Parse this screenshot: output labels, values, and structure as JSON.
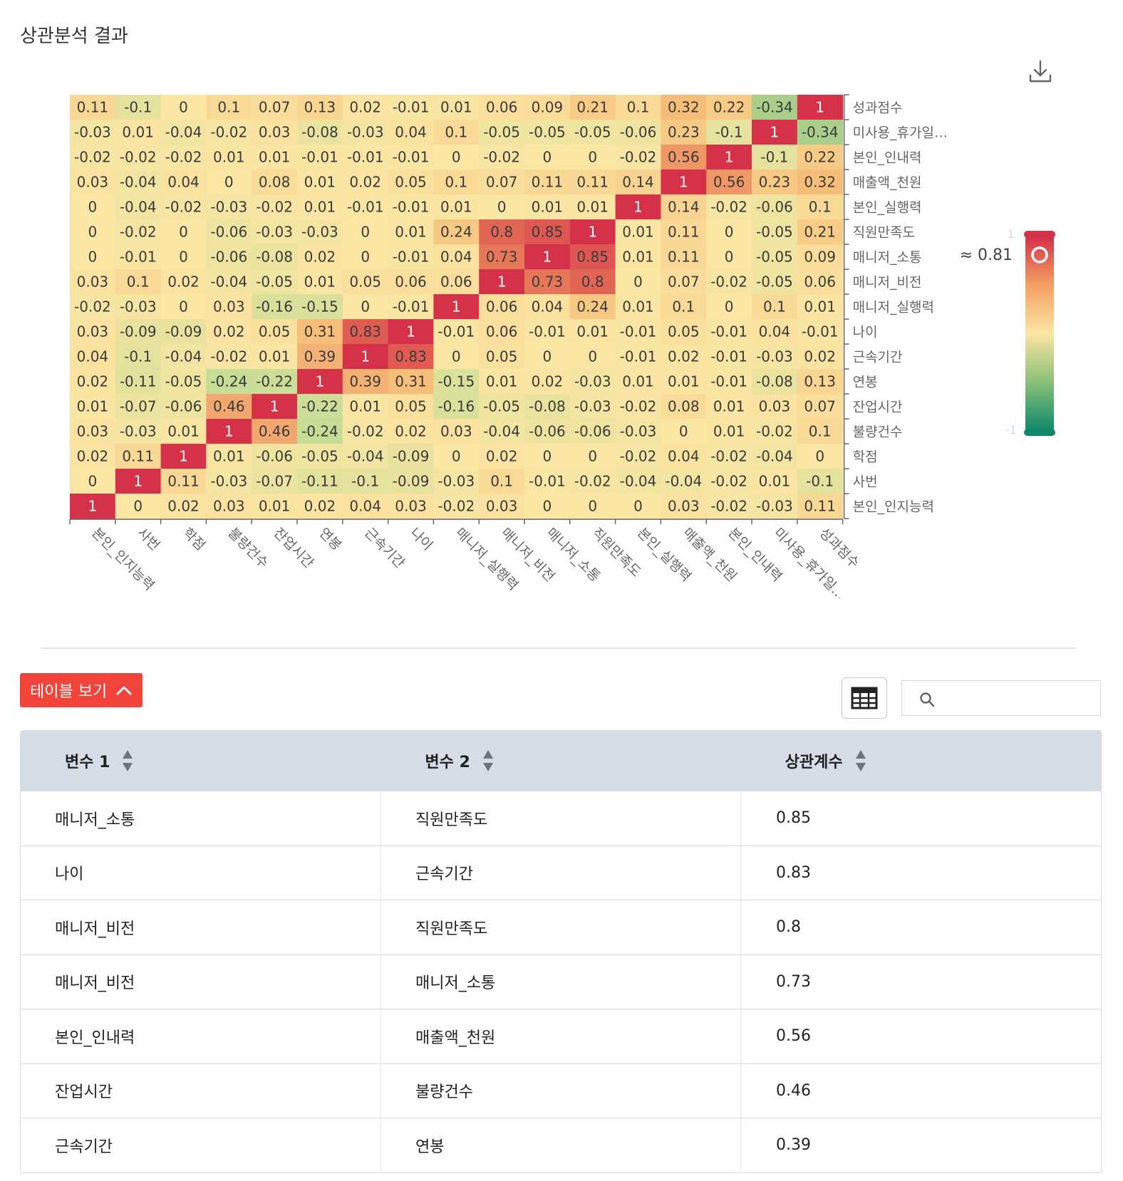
{
  "page": {
    "title": "상관분석 결과"
  },
  "toolbar": {
    "download_icon": "download-icon"
  },
  "chart_data": {
    "type": "heatmap",
    "x_categories": [
      "본인_인지능력",
      "사번",
      "학점",
      "불량건수",
      "잔업시간",
      "연봉",
      "근속기간",
      "나이",
      "매니저_실행력",
      "매니저_비전",
      "매니저_소통",
      "직원만족도",
      "본인_실행력",
      "매출액_천원",
      "본인_인내력",
      "미사용_휴가일수",
      "성과점수"
    ],
    "x_tick_labels": [
      "본인_인지능력",
      "사번",
      "학점",
      "불량건수",
      "잔업시간",
      "연봉",
      "근속기간",
      "나이",
      "매니저_실행력",
      "매니저_비전",
      "매니저_소통",
      "직원만족도",
      "본인_실행력",
      "매출액_천원",
      "본인_인내력",
      "미사용_휴가일…",
      "성과점수"
    ],
    "y_categories_top_to_bottom": [
      "성과점수",
      "미사용_휴가일수",
      "본인_인내력",
      "매출액_천원",
      "본인_실행력",
      "직원만족도",
      "매니저_소통",
      "매니저_비전",
      "매니저_실행력",
      "나이",
      "근속기간",
      "연봉",
      "잔업시간",
      "불량건수",
      "학점",
      "사번",
      "본인_인지능력"
    ],
    "y_tick_labels_top_to_bottom": [
      "성과점수",
      "미사용_휴가일…",
      "본인_인내력",
      "매출액_천원",
      "본인_실행력",
      "직원만족도",
      "매니저_소통",
      "매니저_비전",
      "매니저_실행력",
      "나이",
      "근속기간",
      "연봉",
      "잔업시간",
      "불량건수",
      "학점",
      "사번",
      "본인_인지능력"
    ],
    "values_top_to_bottom": [
      [
        "0.11",
        "-0.1",
        "0",
        "0.1",
        "0.07",
        "0.13",
        "0.02",
        "-0.01",
        "0.01",
        "0.06",
        "0.09",
        "0.21",
        "0.1",
        "0.32",
        "0.22",
        "-0.34",
        "1"
      ],
      [
        "-0.03",
        "0.01",
        "-0.04",
        "-0.02",
        "0.03",
        "-0.08",
        "-0.03",
        "0.04",
        "0.1",
        "-0.05",
        "-0.05",
        "-0.05",
        "-0.06",
        "0.23",
        "-0.1",
        "1",
        "-0.34"
      ],
      [
        "-0.02",
        "-0.02",
        "-0.02",
        "0.01",
        "0.01",
        "-0.01",
        "-0.01",
        "-0.01",
        "0",
        "-0.02",
        "0",
        "0",
        "-0.02",
        "0.56",
        "1",
        "-0.1",
        "0.22"
      ],
      [
        "0.03",
        "-0.04",
        "0.04",
        "0",
        "0.08",
        "0.01",
        "0.02",
        "0.05",
        "0.1",
        "0.07",
        "0.11",
        "0.11",
        "0.14",
        "1",
        "0.56",
        "0.23",
        "0.32"
      ],
      [
        "0",
        "-0.04",
        "-0.02",
        "-0.03",
        "-0.02",
        "0.01",
        "-0.01",
        "-0.01",
        "0.01",
        "0",
        "0.01",
        "0.01",
        "1",
        "0.14",
        "-0.02",
        "-0.06",
        "0.1"
      ],
      [
        "0",
        "-0.02",
        "0",
        "-0.06",
        "-0.03",
        "-0.03",
        "0",
        "0.01",
        "0.24",
        "0.8",
        "0.85",
        "1",
        "0.01",
        "0.11",
        "0",
        "-0.05",
        "0.21"
      ],
      [
        "0",
        "-0.01",
        "0",
        "-0.06",
        "-0.08",
        "0.02",
        "0",
        "-0.01",
        "0.04",
        "0.73",
        "1",
        "0.85",
        "0.01",
        "0.11",
        "0",
        "-0.05",
        "0.09"
      ],
      [
        "0.03",
        "0.1",
        "0.02",
        "-0.04",
        "-0.05",
        "0.01",
        "0.05",
        "0.06",
        "0.06",
        "1",
        "0.73",
        "0.8",
        "0",
        "0.07",
        "-0.02",
        "-0.05",
        "0.06"
      ],
      [
        "-0.02",
        "-0.03",
        "0",
        "0.03",
        "-0.16",
        "-0.15",
        "0",
        "-0.01",
        "1",
        "0.06",
        "0.04",
        "0.24",
        "0.01",
        "0.1",
        "0",
        "0.1",
        "0.01"
      ],
      [
        "0.03",
        "-0.09",
        "-0.09",
        "0.02",
        "0.05",
        "0.31",
        "0.83",
        "1",
        "-0.01",
        "0.06",
        "-0.01",
        "0.01",
        "-0.01",
        "0.05",
        "-0.01",
        "0.04",
        "-0.01"
      ],
      [
        "0.04",
        "-0.1",
        "-0.04",
        "-0.02",
        "0.01",
        "0.39",
        "1",
        "0.83",
        "0",
        "0.05",
        "0",
        "0",
        "-0.01",
        "0.02",
        "-0.01",
        "-0.03",
        "0.02"
      ],
      [
        "0.02",
        "-0.11",
        "-0.05",
        "-0.24",
        "-0.22",
        "1",
        "0.39",
        "0.31",
        "-0.15",
        "0.01",
        "0.02",
        "-0.03",
        "0.01",
        "0.01",
        "-0.01",
        "-0.08",
        "0.13"
      ],
      [
        "0.01",
        "-0.07",
        "-0.06",
        "0.46",
        "1",
        "-0.22",
        "0.01",
        "0.05",
        "-0.16",
        "-0.05",
        "-0.08",
        "-0.03",
        "-0.02",
        "0.08",
        "0.01",
        "0.03",
        "0.07"
      ],
      [
        "0.03",
        "-0.03",
        "0.01",
        "1",
        "0.46",
        "-0.24",
        "-0.02",
        "0.02",
        "0.03",
        "-0.04",
        "-0.06",
        "-0.06",
        "-0.03",
        "0",
        "0.01",
        "-0.02",
        "0.1"
      ],
      [
        "0.02",
        "0.11",
        "1",
        "0.01",
        "-0.06",
        "-0.05",
        "-0.04",
        "-0.09",
        "0",
        "0.02",
        "0",
        "0",
        "-0.02",
        "0.04",
        "-0.02",
        "-0.04",
        "0"
      ],
      [
        "0",
        "1",
        "0.11",
        "-0.03",
        "-0.07",
        "-0.11",
        "-0.1",
        "-0.09",
        "-0.03",
        "0.1",
        "-0.01",
        "-0.02",
        "-0.04",
        "-0.04",
        "-0.02",
        "0.01",
        "-0.1"
      ],
      [
        "1",
        "0",
        "0.02",
        "0.03",
        "0.01",
        "0.02",
        "0.04",
        "0.03",
        "-0.02",
        "0.03",
        "0",
        "0",
        "0",
        "0.03",
        "-0.02",
        "-0.03",
        "0.11"
      ]
    ],
    "colorbar": {
      "min": -1,
      "max": 1,
      "min_label": "-1",
      "max_label": "1",
      "handle_value": 0.81,
      "handle_label": "≈ 0.81"
    },
    "colors": {
      "high": "#d53149",
      "mid": "#fbe6a4",
      "low": "#0e8a69"
    }
  },
  "table": {
    "toggle_label": "테이블 보기",
    "grid_icon": "grid-view-icon",
    "search": {
      "icon": "search-icon",
      "placeholder": ""
    },
    "headers": [
      "변수 1",
      "변수 2",
      "상관계수"
    ],
    "rows": [
      [
        "매니저_소통",
        "직원만족도",
        "0.85"
      ],
      [
        "나이",
        "근속기간",
        "0.83"
      ],
      [
        "매니저_비전",
        "직원만족도",
        "0.8"
      ],
      [
        "매니저_비전",
        "매니저_소통",
        "0.73"
      ],
      [
        "본인_인내력",
        "매출액_천원",
        "0.56"
      ],
      [
        "잔업시간",
        "불량건수",
        "0.46"
      ],
      [
        "근속기간",
        "연봉",
        "0.39"
      ]
    ]
  }
}
